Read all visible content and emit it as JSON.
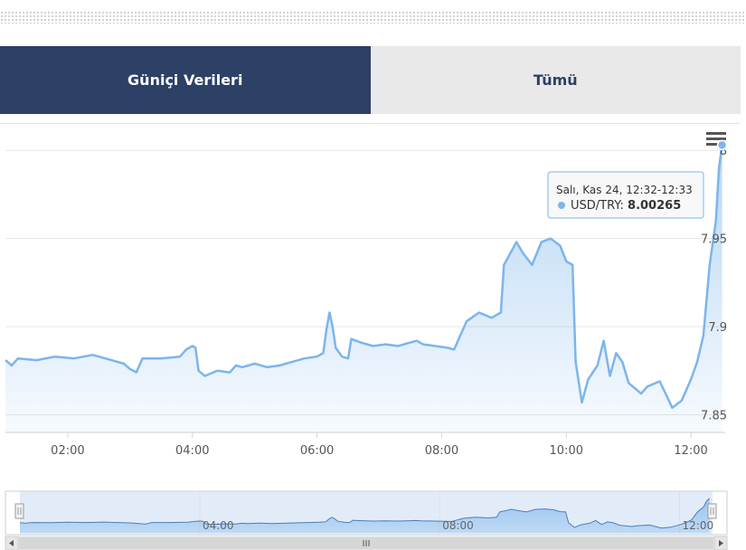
{
  "tabs": [
    {
      "label": "Güniçi Verileri",
      "active": true
    },
    {
      "label": "Tümü",
      "active": false
    }
  ],
  "tooltip": {
    "header": "Salı, Kas 24, 12:32-12:33",
    "series": "USD/TRY",
    "value": "8.00265"
  },
  "colors": {
    "tab_active_bg": "#2d4065",
    "tab_inactive_bg": "#e9e9e9",
    "series_line": "#7cb5ec",
    "navigator_line": "#4d7fb8"
  },
  "chart_data": {
    "type": "area",
    "series": [
      {
        "name": "USD/TRY",
        "points": [
          [
            1.0,
            7.881
          ],
          [
            1.1,
            7.878
          ],
          [
            1.2,
            7.882
          ],
          [
            1.5,
            7.881
          ],
          [
            1.8,
            7.883
          ],
          [
            2.1,
            7.882
          ],
          [
            2.4,
            7.884
          ],
          [
            2.7,
            7.881
          ],
          [
            2.9,
            7.879
          ],
          [
            3.0,
            7.876
          ],
          [
            3.1,
            7.874
          ],
          [
            3.2,
            7.882
          ],
          [
            3.5,
            7.882
          ],
          [
            3.8,
            7.883
          ],
          [
            3.9,
            7.887
          ],
          [
            4.0,
            7.889
          ],
          [
            4.05,
            7.888
          ],
          [
            4.1,
            7.875
          ],
          [
            4.2,
            7.872
          ],
          [
            4.4,
            7.875
          ],
          [
            4.6,
            7.874
          ],
          [
            4.7,
            7.878
          ],
          [
            4.8,
            7.877
          ],
          [
            5.0,
            7.879
          ],
          [
            5.2,
            7.877
          ],
          [
            5.4,
            7.878
          ],
          [
            5.6,
            7.88
          ],
          [
            5.8,
            7.882
          ],
          [
            6.0,
            7.883
          ],
          [
            6.1,
            7.885
          ],
          [
            6.15,
            7.898
          ],
          [
            6.2,
            7.908
          ],
          [
            6.25,
            7.9
          ],
          [
            6.3,
            7.888
          ],
          [
            6.4,
            7.883
          ],
          [
            6.5,
            7.882
          ],
          [
            6.55,
            7.893
          ],
          [
            6.7,
            7.891
          ],
          [
            6.9,
            7.889
          ],
          [
            7.1,
            7.89
          ],
          [
            7.3,
            7.889
          ],
          [
            7.5,
            7.891
          ],
          [
            7.6,
            7.892
          ],
          [
            7.7,
            7.89
          ],
          [
            7.9,
            7.889
          ],
          [
            8.1,
            7.888
          ],
          [
            8.2,
            7.887
          ],
          [
            8.3,
            7.895
          ],
          [
            8.4,
            7.903
          ],
          [
            8.6,
            7.908
          ],
          [
            8.8,
            7.905
          ],
          [
            8.95,
            7.908
          ],
          [
            9.0,
            7.935
          ],
          [
            9.2,
            7.948
          ],
          [
            9.3,
            7.942
          ],
          [
            9.45,
            7.935
          ],
          [
            9.6,
            7.948
          ],
          [
            9.75,
            7.95
          ],
          [
            9.9,
            7.946
          ],
          [
            10.0,
            7.937
          ],
          [
            10.1,
            7.935
          ],
          [
            10.15,
            7.88
          ],
          [
            10.25,
            7.857
          ],
          [
            10.35,
            7.87
          ],
          [
            10.5,
            7.878
          ],
          [
            10.6,
            7.892
          ],
          [
            10.7,
            7.872
          ],
          [
            10.8,
            7.885
          ],
          [
            10.9,
            7.88
          ],
          [
            11.0,
            7.868
          ],
          [
            11.2,
            7.862
          ],
          [
            11.3,
            7.866
          ],
          [
            11.5,
            7.869
          ],
          [
            11.7,
            7.854
          ],
          [
            11.85,
            7.858
          ],
          [
            12.0,
            7.87
          ],
          [
            12.1,
            7.88
          ],
          [
            12.2,
            7.895
          ],
          [
            12.3,
            7.935
          ],
          [
            12.4,
            7.96
          ],
          [
            12.45,
            7.99
          ],
          [
            12.5,
            8.003
          ]
        ]
      }
    ],
    "xlim": [
      1.0,
      12.55
    ],
    "ylim": [
      7.84,
      8.015
    ],
    "x_ticks": [
      {
        "value": 2,
        "label": "02:00"
      },
      {
        "value": 4,
        "label": "04:00"
      },
      {
        "value": 6,
        "label": "06:00"
      },
      {
        "value": 8,
        "label": "08:00"
      },
      {
        "value": 10,
        "label": "10:00"
      },
      {
        "value": 12,
        "label": "12:00"
      }
    ],
    "y_ticks": [
      {
        "value": 7.85,
        "label": "7.85"
      },
      {
        "value": 7.9,
        "label": "7.9"
      },
      {
        "value": 7.95,
        "label": "7.95"
      },
      {
        "value": 8.0,
        "label": "8"
      }
    ],
    "navigator_ticks": [
      {
        "value": 4,
        "label": "04:00"
      },
      {
        "value": 8,
        "label": "08:00"
      },
      {
        "value": 12,
        "label": "12:00"
      }
    ],
    "grid": true,
    "legend": "none"
  },
  "icons": {
    "menu": "hamburger-menu-icon",
    "scroll_left": "arrow-left-icon",
    "scroll_right": "arrow-right-icon",
    "scroll_grip": "grip-icon"
  }
}
